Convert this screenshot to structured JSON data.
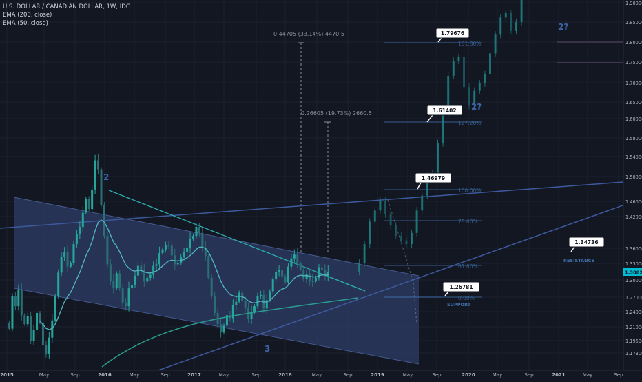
{
  "chart_data": {
    "type": "candlestick",
    "title": "U.S. DOLLAR / CANADIAN DOLLAR, 1W, IDC",
    "indicators": [
      "EMA (200, close)",
      "EMA (50, close)"
    ],
    "x_ticks": [
      "2015",
      "May",
      "Sep",
      "2016",
      "May",
      "Sep",
      "2017",
      "May",
      "Sep",
      "2018",
      "May",
      "Sep",
      "2019",
      "May",
      "Sep",
      "2020",
      "May",
      "Sep",
      "2021",
      "May",
      "Sep"
    ],
    "y_ticks": [
      "1.90000",
      "1.85000",
      "1.80000",
      "1.75000",
      "1.70000",
      "1.65000",
      "1.60000",
      "1.58000",
      "1.54000",
      "1.50000",
      "1.46000",
      "1.42000",
      "1.36000",
      "1.33000",
      "1.30000",
      "1.27000",
      "1.24000",
      "1.21000",
      "1.19500",
      "1.17300"
    ],
    "current_price": "1.30822",
    "ylim": [
      1.16,
      1.9
    ],
    "colors": {
      "background": "#131722",
      "candle_up": "#26a69a",
      "candle_down": "#2b6f75",
      "ema200": "#2a9d8f",
      "ema50": "#4fb3bf",
      "channel": "#2e3f6a",
      "trendline": "#3d5a9e",
      "target_line": "#2962ff",
      "wave_label": "#3f63a8",
      "price_badge": "#00bcd4"
    },
    "price_series": {
      "historical": [
        1.232,
        1.275,
        1.262,
        1.284,
        1.25,
        1.238,
        1.249,
        1.216,
        1.23,
        1.253,
        1.24,
        1.21,
        1.198,
        1.22,
        1.243,
        1.276,
        1.307,
        1.328,
        1.334,
        1.315,
        1.32,
        1.345,
        1.358,
        1.368,
        1.387,
        1.405,
        1.392,
        1.418,
        1.457,
        1.445,
        1.397,
        1.356,
        1.318,
        1.296,
        1.286,
        1.306,
        1.286,
        1.266,
        1.262,
        1.286,
        1.29,
        1.303,
        1.316,
        1.31,
        1.295,
        1.3,
        1.304,
        1.316,
        1.318,
        1.333,
        1.338,
        1.344,
        1.343,
        1.33,
        1.318,
        1.32,
        1.328,
        1.334,
        1.34,
        1.352,
        1.356,
        1.368,
        1.36,
        1.34,
        1.329,
        1.3,
        1.276,
        1.253,
        1.238,
        1.227,
        1.236,
        1.25,
        1.246,
        1.264,
        1.268,
        1.28,
        1.269,
        1.26,
        1.245,
        1.254,
        1.262,
        1.276,
        1.277,
        1.259,
        1.27,
        1.282,
        1.298,
        1.308,
        1.31,
        1.302,
        1.294,
        1.315,
        1.326,
        1.331,
        1.32,
        1.311,
        1.298,
        1.305,
        1.295,
        1.296,
        1.3,
        1.314,
        1.311,
        1.302,
        1.308
      ],
      "projected": [
        1.32,
        1.345,
        1.375,
        1.39,
        1.403,
        1.385,
        1.37,
        1.356,
        1.35,
        1.345,
        1.36,
        1.39,
        1.41,
        1.437,
        1.44,
        1.48,
        1.52,
        1.57,
        1.59,
        1.595,
        1.555,
        1.53,
        1.55,
        1.56,
        1.572,
        1.6,
        1.625,
        1.648,
        1.654,
        1.63,
        1.642,
        1.68,
        1.72,
        1.745,
        1.76,
        1.79,
        1.83,
        1.84
      ]
    },
    "annotations": {
      "wave_labels": [
        "2",
        "3",
        "2?",
        "2?"
      ],
      "fib_levels": [
        "161.80%",
        "127.20%",
        "100.00%",
        "78.60%",
        "61.80%",
        "0.00%"
      ],
      "measurements": [
        "0.44705 (33.14%) 4470.5",
        "0.26605 (19.73%) 2660.5"
      ],
      "price_callouts": [
        "1.79676",
        "1.61402",
        "1.46979",
        "1.26781",
        "1.34736"
      ],
      "zone_labels": [
        "SUPPORT",
        "RESISTANCE"
      ]
    }
  }
}
